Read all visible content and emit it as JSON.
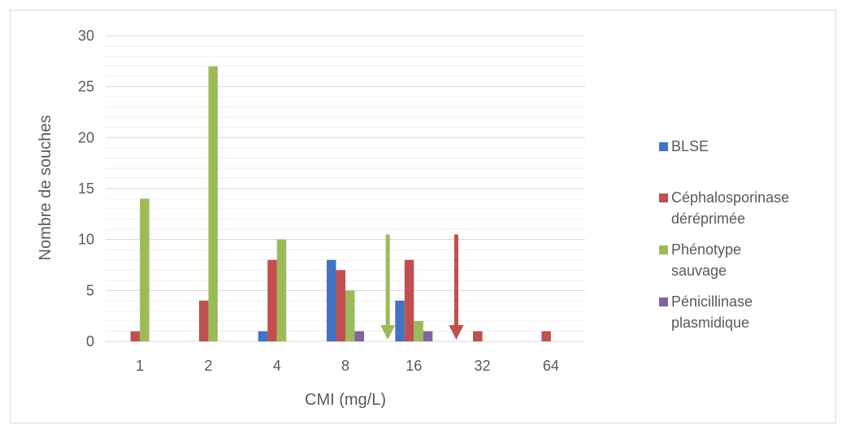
{
  "chart_data": {
    "type": "bar",
    "title": "",
    "xlabel": "CMI (mg/L)",
    "ylabel": "Nombre de souches",
    "ylim": [
      0,
      30
    ],
    "yticks": [
      0,
      5,
      10,
      15,
      20,
      25,
      30
    ],
    "grid": true,
    "legend_position": "right",
    "categories": [
      "1",
      "2",
      "4",
      "8",
      "16",
      "32",
      "64"
    ],
    "series": [
      {
        "name": "BLSE",
        "color": "#4472c4",
        "values": [
          0,
          0,
          1,
          8,
          4,
          0,
          0
        ]
      },
      {
        "name": "Céphalosporinase déréprimée",
        "color": "#c0504d",
        "values": [
          1,
          4,
          8,
          7,
          8,
          1,
          1
        ]
      },
      {
        "name": "Phénotype sauvage",
        "color": "#9bbb59",
        "values": [
          14,
          27,
          10,
          5,
          2,
          0,
          0
        ]
      },
      {
        "name": "Pénicillinase plasmidique",
        "color": "#8064a2",
        "values": [
          0,
          0,
          0,
          1,
          1,
          0,
          0
        ]
      }
    ],
    "legend_lines": [
      [
        "BLSE"
      ],
      [
        "Céphalosporinase",
        "déréprimée"
      ],
      [
        "Phénotype",
        "sauvage"
      ],
      [
        "Pénicillinase",
        "plasmidique"
      ]
    ],
    "annotations": [
      {
        "type": "arrow-down",
        "color": "#9bbb59",
        "x_between": [
          "8",
          "16"
        ],
        "y_from": 10.5,
        "y_to": 0
      },
      {
        "type": "arrow-down",
        "color": "#c0504d",
        "x_between": [
          "16",
          "32"
        ],
        "y_from": 10.5,
        "y_to": 0
      }
    ]
  }
}
